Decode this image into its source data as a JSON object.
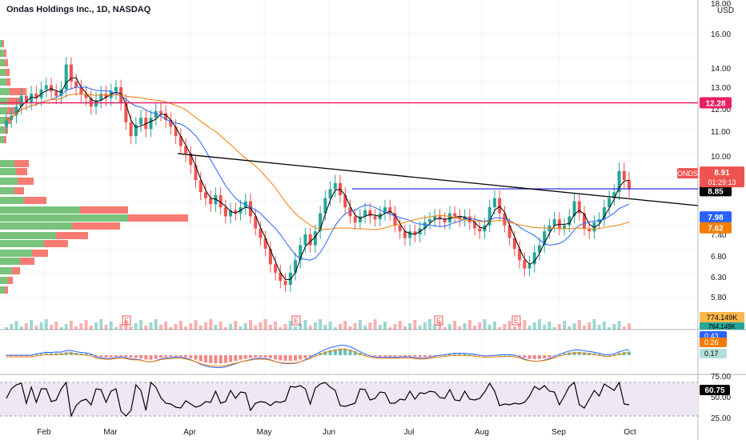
{
  "header": {
    "title": "Ondas Holdings Inc., 1D, NASDAQ"
  },
  "currency": {
    "top": "18.00",
    "unit": "USD"
  },
  "colors": {
    "up": "#26a69a",
    "down": "#ef5350",
    "resistance": "#e91e63",
    "hline": "#1a1adb",
    "ma_fast": "#000000",
    "ma_mid": "#2962ff",
    "ma_slow": "#f57c00",
    "rsi_fill": "#ede7f6"
  },
  "chart_data": {
    "type": "candlestick",
    "price_axis": {
      "min": 5.4,
      "max": 17.2,
      "ticks": [
        "16.00",
        "14.00",
        "13.00",
        "12.00",
        "11.00",
        "10.00",
        "7.40",
        "6.80",
        "6.30",
        "5.80"
      ]
    },
    "time_axis": [
      "Feb",
      "Mar",
      "Apr",
      "May",
      "Jun",
      "Jul",
      "Aug",
      "Sep",
      "Oct"
    ],
    "last_price": 8.91,
    "resistance_level": 12.28,
    "support_level": 8.91,
    "trendline": {
      "from": {
        "date": "Mar 28",
        "price": 10.12
      },
      "to": {
        "date": "Oct 5",
        "price": 8.49
      }
    },
    "moving_averages": [
      {
        "color": "black",
        "last": 8.85
      },
      {
        "color": "blue",
        "last": 7.98
      },
      {
        "color": "orange",
        "last": 7.62
      }
    ],
    "price_labels": [
      {
        "text": "12.28",
        "color": "#e91e63",
        "price": 12.28
      },
      {
        "text": "8.91",
        "color": "#1a1adb",
        "price": 8.91
      },
      {
        "text": "8.85",
        "color": "#000000",
        "price": 8.85
      },
      {
        "text": "7.98",
        "color": "#2962ff",
        "price": 7.98
      },
      {
        "text": "7.62",
        "color": "#f57c00",
        "price": 7.62
      }
    ],
    "symbol_tag": {
      "symbol": "ONDS",
      "price": "8.91",
      "countdown": "01:29:13"
    },
    "volume_labels": [
      "774.149K",
      "764.149K"
    ],
    "earnings_marker": "E",
    "macd": {
      "labels": [
        "0.43",
        "0.26",
        "0.17"
      ]
    },
    "rsi": {
      "value": "60.75",
      "ticks": [
        "75.00",
        "50.00",
        "25.00"
      ]
    },
    "closes": [
      11.5,
      11.7,
      12.1,
      12.6,
      12.3,
      12.7,
      12.5,
      12.9,
      13.1,
      12.8,
      12.6,
      12.9,
      14.2,
      13.3,
      13.0,
      12.7,
      12.5,
      12.1,
      12.4,
      12.7,
      12.5,
      12.8,
      13.0,
      12.3,
      11.4,
      10.8,
      11.3,
      11.6,
      11.1,
      11.6,
      11.9,
      11.8,
      11.5,
      11.2,
      10.8,
      10.4,
      10.1,
      9.7,
      9.2,
      8.8,
      8.6,
      8.4,
      8.7,
      8.3,
      8.0,
      8.2,
      8.1,
      8.3,
      8.5,
      8.0,
      7.6,
      7.3,
      7.0,
      6.6,
      6.4,
      6.2,
      6.1,
      6.4,
      6.7,
      7.1,
      7.4,
      7.1,
      7.5,
      8.1,
      8.6,
      8.9,
      9.1,
      8.7,
      8.3,
      8.0,
      7.8,
      8.0,
      8.2,
      8.0,
      7.9,
      8.1,
      8.3,
      8.1,
      7.7,
      7.5,
      7.3,
      7.5,
      7.4,
      7.6,
      7.8,
      7.9,
      8.0,
      7.9,
      7.8,
      8.1,
      8.0,
      7.9,
      8.0,
      7.8,
      7.6,
      7.5,
      7.7,
      8.3,
      8.6,
      8.1,
      7.7,
      7.3,
      7.0,
      6.7,
      6.5,
      6.6,
      6.9,
      7.1,
      7.5,
      7.7,
      7.9,
      7.6,
      7.7,
      8.0,
      8.5,
      8.1,
      7.6,
      7.5,
      7.8,
      7.9,
      8.3,
      8.6,
      8.8,
      9.5,
      9.2,
      8.9
    ]
  }
}
